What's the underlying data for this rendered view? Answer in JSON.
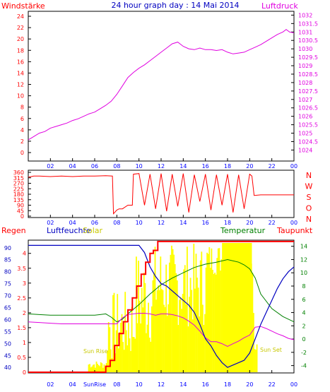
{
  "title": "24 hour graph day : 14 Mai 2014",
  "hours": [
    "02",
    "04",
    "06",
    "08",
    "10",
    "12",
    "14",
    "16",
    "18",
    "20",
    "22",
    "00"
  ],
  "panel1": {
    "left_label": "Windstärke",
    "right_label": "Luftdruck",
    "left_ticks": [
      "0",
      "2",
      "4",
      "6",
      "8",
      "10",
      "12",
      "14",
      "16",
      "18",
      "20",
      "22",
      "24"
    ],
    "right_ticks": [
      "1024",
      "1024.5",
      "1025",
      "1025.5",
      "1026",
      "1026.5",
      "1027",
      "1027.5",
      "1028",
      "1028.5",
      "1029",
      "1029.5",
      "1030",
      "1030.5",
      "1031",
      "1031.5",
      "1032"
    ]
  },
  "panel2": {
    "left_ticks": [
      "0",
      "45",
      "90",
      "135",
      "180",
      "225",
      "270",
      "315",
      "360"
    ],
    "right_letters": [
      "N",
      "W",
      "S",
      "O",
      "N"
    ]
  },
  "panel3": {
    "labels": {
      "regen": "Regen",
      "luftfeuchte": "Luftfeuchte",
      "solar": "Solar",
      "temperatur": "Temperatur",
      "taupunkt": "Taupunkt",
      "sun_rise": "Sun Rise",
      "sun_set": "Sun Set",
      "sunrise_axis": "SunRise"
    },
    "rain_ticks": [
      "0",
      "0.5",
      "1",
      "1.5",
      "2",
      "2.5",
      "3",
      "3.5",
      "4"
    ],
    "humidity_ticks": [
      "40",
      "45",
      "50",
      "55",
      "60",
      "65",
      "70",
      "75",
      "80",
      "85",
      "90"
    ],
    "temp_ticks": [
      "-4",
      "-2",
      "0",
      "2",
      "4",
      "6",
      "8",
      "10",
      "12",
      "14"
    ]
  },
  "colors": {
    "pressure": "#e000e0",
    "wind": "#ff0000",
    "humidity": "#0000c0",
    "temperature": "#008000",
    "dewpoint": "#e000e0",
    "solar": "#ffff00",
    "rain": "#ff0000",
    "axis_text": "#0000ff"
  },
  "chart_data": [
    {
      "type": "line",
      "title": "24 hour graph day : 14 Mai 2014",
      "xlabel": "",
      "ylabel": "Windstärke",
      "y2label": "Luftdruck",
      "xlim": [
        0,
        24
      ],
      "ylim": [
        0,
        25
      ],
      "y2lim": [
        1024,
        1032
      ],
      "series": [
        {
          "name": "Luftdruck",
          "axis": "right",
          "x": [
            0,
            0.5,
            1,
            1.5,
            2,
            2.5,
            3,
            3.5,
            4,
            4.5,
            5,
            5.5,
            6,
            6.5,
            7,
            7.5,
            8,
            8.5,
            9,
            9.5,
            10,
            10.5,
            11,
            11.5,
            12,
            12.5,
            13,
            13.5,
            14,
            14.5,
            15,
            15.5,
            16,
            16.5,
            17,
            17.5,
            18,
            18.5,
            19,
            19.5,
            20,
            20.5,
            21,
            21.5,
            22,
            22.5,
            23,
            23.3,
            23.6,
            24
          ],
          "y": [
            1024.6,
            1024.8,
            1025.0,
            1025.1,
            1025.3,
            1025.4,
            1025.5,
            1025.6,
            1025.75,
            1025.85,
            1026.0,
            1026.15,
            1026.25,
            1026.45,
            1026.65,
            1026.9,
            1027.3,
            1027.8,
            1028.3,
            1028.6,
            1028.85,
            1029.05,
            1029.3,
            1029.55,
            1029.8,
            1030.05,
            1030.3,
            1030.4,
            1030.15,
            1030.0,
            1029.95,
            1030.05,
            1029.95,
            1029.95,
            1029.9,
            1029.95,
            1029.8,
            1029.7,
            1029.75,
            1029.8,
            1029.95,
            1030.1,
            1030.25,
            1030.45,
            1030.65,
            1030.85,
            1031.0,
            1031.15,
            1031.0,
            1030.95
          ]
        }
      ]
    },
    {
      "type": "line",
      "ylabel": "Windrichtung",
      "xlim": [
        0,
        24
      ],
      "ylim": [
        0,
        360
      ],
      "series": [
        {
          "name": "Windrichtung",
          "x": [
            0,
            0.5,
            1,
            2,
            3,
            4,
            5,
            6,
            7,
            7.6,
            7.7,
            8.0,
            8.2,
            8.5,
            9,
            9.4,
            9.5,
            10,
            10.5,
            11,
            11.5,
            12,
            12.5,
            13,
            13.5,
            14,
            14.5,
            15,
            15.5,
            16,
            16.5,
            17,
            17.5,
            18,
            18.5,
            19,
            19.5,
            20,
            20.2,
            20.4,
            21,
            22,
            23,
            24
          ],
          "y": [
            320,
            330,
            330,
            325,
            330,
            325,
            330,
            330,
            332,
            330,
            20,
            50,
            60,
            60,
            90,
            90,
            345,
            350,
            90,
            345,
            60,
            350,
            40,
            345,
            80,
            350,
            30,
            340,
            120,
            345,
            50,
            340,
            90,
            345,
            30,
            340,
            60,
            345,
            330,
            170,
            175,
            175,
            175,
            175
          ]
        }
      ]
    },
    {
      "type": "line",
      "xlim": [
        0,
        24
      ],
      "series": [
        {
          "name": "Luftfeuchte",
          "axis": "humidity",
          "range": [
            38,
            92
          ],
          "x": [
            0,
            1,
            2,
            3,
            4,
            5,
            6,
            7,
            8,
            9,
            9.5,
            10,
            10.5,
            11,
            11.5,
            12,
            12.5,
            13,
            13.5,
            14,
            14.5,
            15,
            15.5,
            16,
            16.5,
            17,
            17.5,
            18,
            18.5,
            19,
            19.5,
            20,
            20.5,
            21,
            21.5,
            22,
            22.5,
            23,
            23.5,
            24
          ],
          "y": [
            91,
            91,
            91,
            91,
            91,
            91,
            91,
            91,
            91,
            91,
            91,
            91,
            88,
            82,
            78,
            75,
            74,
            72,
            70,
            68,
            66,
            63,
            58,
            52,
            49,
            45,
            42,
            40,
            41,
            42,
            43,
            46,
            52,
            58,
            63,
            68,
            73,
            77,
            80,
            82
          ]
        },
        {
          "name": "Temperatur",
          "axis": "temp",
          "range": [
            -5,
            14.5
          ],
          "x": [
            0,
            1,
            2,
            3,
            4,
            5,
            6,
            6.5,
            7,
            7.5,
            8,
            8.5,
            9,
            10,
            11,
            12,
            13,
            14,
            15,
            16,
            17,
            18,
            19,
            19.5,
            20,
            20.5,
            21,
            22,
            23,
            24
          ],
          "y": [
            3.8,
            3.7,
            3.6,
            3.6,
            3.6,
            3.6,
            3.6,
            3.7,
            3.8,
            3.3,
            2.6,
            3.0,
            3.8,
            5.2,
            6.8,
            8.2,
            9.2,
            10.0,
            10.8,
            11.3,
            11.6,
            12.0,
            11.6,
            11.2,
            10.6,
            9.2,
            6.8,
            4.6,
            3.4,
            2.6
          ]
        },
        {
          "name": "Taupunkt",
          "axis": "temp",
          "range": [
            -5,
            14.5
          ],
          "x": [
            0,
            1,
            2,
            3,
            4,
            5,
            6,
            7,
            8,
            8.5,
            9,
            9.5,
            10,
            10.5,
            11,
            11.5,
            12,
            12.5,
            13,
            13.5,
            14,
            14.5,
            15,
            15.5,
            16,
            16.5,
            17,
            17.5,
            18,
            18.5,
            19,
            19.5,
            20,
            20.5,
            21,
            21.5,
            22,
            22.5,
            23,
            23.5,
            24
          ],
          "y": [
            2.6,
            2.5,
            2.4,
            2.3,
            2.3,
            2.3,
            2.3,
            2.3,
            2.3,
            3.2,
            3.7,
            3.8,
            3.9,
            3.9,
            3.8,
            3.6,
            3.8,
            3.8,
            3.7,
            3.5,
            3.2,
            2.7,
            2.1,
            1.2,
            0.2,
            -0.4,
            -0.4,
            -0.7,
            -1.1,
            -0.7,
            -0.3,
            0.2,
            0.6,
            1.8,
            1.9,
            1.6,
            1.2,
            0.8,
            0.5,
            0.1,
            -0.1
          ]
        },
        {
          "name": "Regen",
          "axis": "rain",
          "range": [
            0,
            4.35
          ],
          "x": [
            0,
            6.6,
            7.0,
            7.4,
            7.8,
            8.2,
            8.6,
            9.0,
            9.4,
            9.8,
            10.2,
            10.6,
            11.0,
            11.3,
            11.7,
            24.0
          ],
          "y": [
            0,
            0,
            0.2,
            0.4,
            0.9,
            1.3,
            1.7,
            2.1,
            2.5,
            2.9,
            3.3,
            3.7,
            4.0,
            4.1,
            4.4,
            4.4
          ]
        }
      ]
    }
  ]
}
